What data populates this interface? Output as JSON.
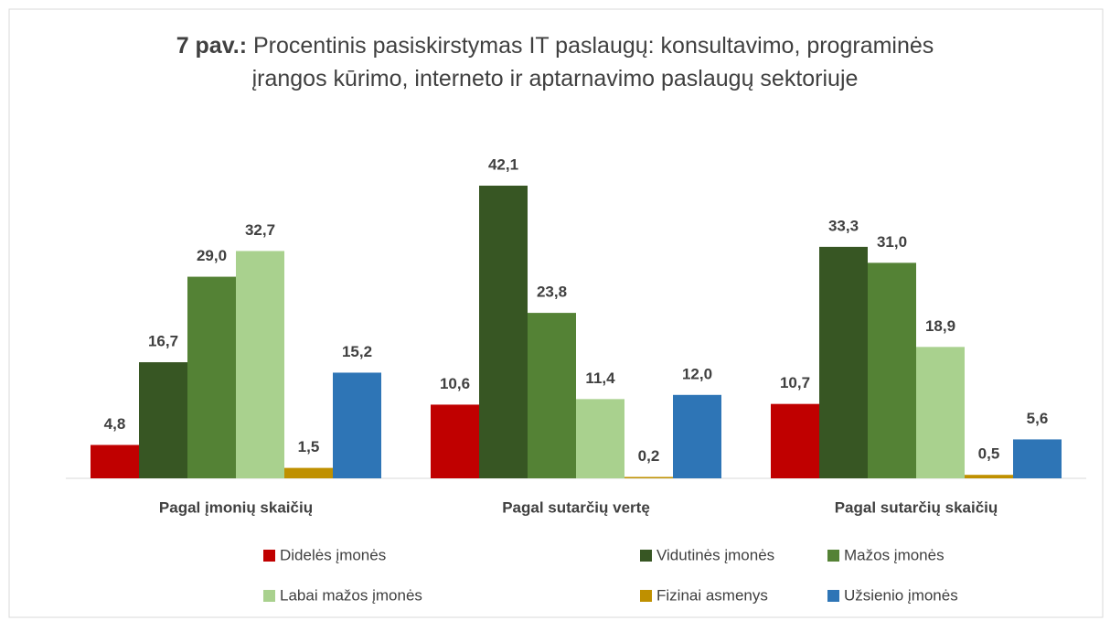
{
  "chart_data": {
    "type": "bar",
    "title_label": "7 pav.:",
    "title": "Procentinis pasiskirstymas IT paslaugų: konsultavimo, programinės įrangos kūrimo, interneto ir aptarnavimo paslaugų sektoriuje",
    "categories": [
      "Pagal įmonių skaičių",
      "Pagal sutarčių vertę",
      "Pagal sutarčių skaičių"
    ],
    "series": [
      {
        "name": "Didelės įmonės",
        "color": "#c00000",
        "values": [
          4.8,
          10.6,
          10.7
        ],
        "value_labels": [
          "4,8",
          "10,6",
          "10,7"
        ]
      },
      {
        "name": "Vidutinės įmonės",
        "color": "#375623",
        "values": [
          16.7,
          42.1,
          33.3
        ],
        "value_labels": [
          "16,7",
          "42,1",
          "33,3"
        ]
      },
      {
        "name": "Mažos įmonės",
        "color": "#548235",
        "values": [
          29.0,
          23.8,
          31.0
        ],
        "value_labels": [
          "29,0",
          "23,8",
          "31,0"
        ]
      },
      {
        "name": "Labai mažos įmonės",
        "color": "#a9d18e",
        "values": [
          32.7,
          11.4,
          18.9
        ],
        "value_labels": [
          "32,7",
          "11,4",
          "18,9"
        ]
      },
      {
        "name": "Fizinai asmenys",
        "color": "#bf9000",
        "values": [
          1.5,
          0.2,
          0.5
        ],
        "value_labels": [
          "1,5",
          "0,2",
          "0,5"
        ]
      },
      {
        "name": "Užsienio įmonės",
        "color": "#2e75b6",
        "values": [
          15.2,
          12.0,
          5.6
        ],
        "value_labels": [
          "15,2",
          "12,0",
          "5,6"
        ]
      }
    ],
    "legend": "bottom"
  }
}
